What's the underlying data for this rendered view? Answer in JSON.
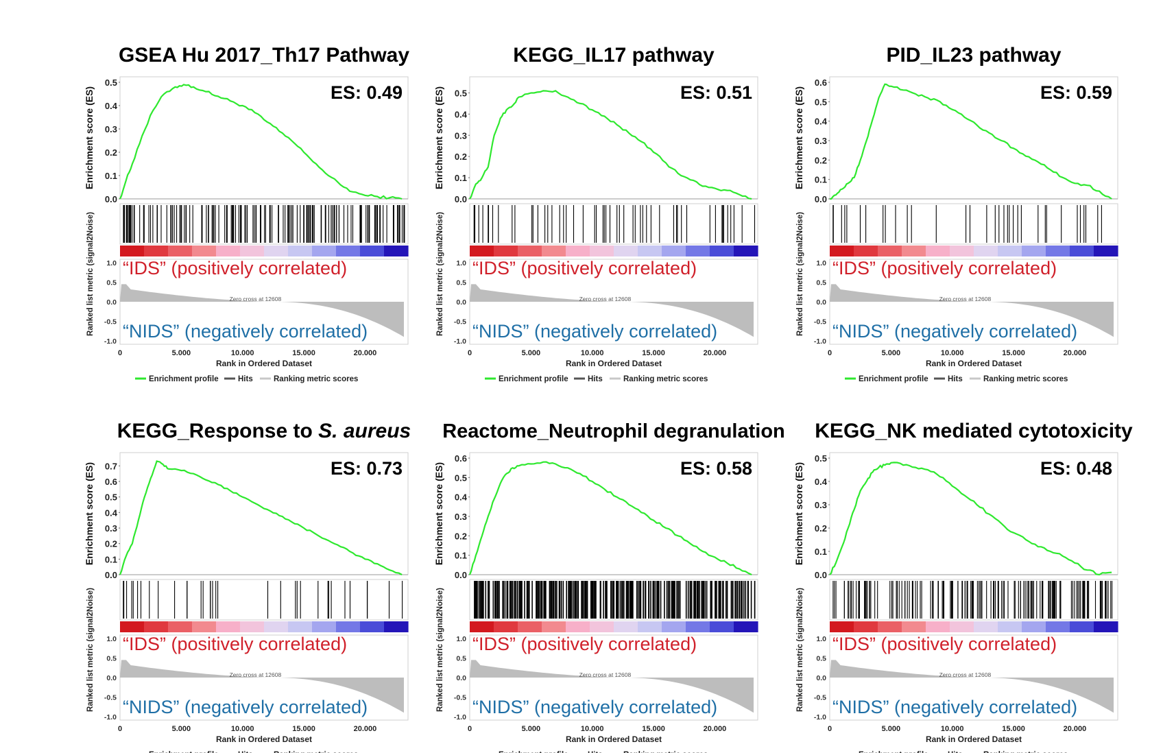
{
  "figure": {
    "es_prefix": "ES: ",
    "positive_label": "“IDS” (positively correlated)",
    "negative_label": "“NIDS” (negatively correlated)",
    "y_label_es": "Enrichment score (ES)",
    "y_label_rank": "Ranked list metric (signal2Noise)",
    "x_label": "Rank in Ordered Dataset",
    "zero_cross": "Zero cross at 12608",
    "legend": [
      "Enrichment profile",
      "Hits",
      "Ranking metric scores"
    ],
    "rank_ticks": [
      "1.0",
      "0.5",
      "0.0",
      "-0.5",
      "-1.0"
    ],
    "x_ticks": [
      "0",
      "5.000",
      "10.000",
      "15.000",
      "20.000"
    ],
    "x_tick_values": [
      0,
      5000,
      10000,
      15000,
      20000
    ],
    "n_genes": 23500,
    "colors": {
      "profile": "#2ee82e",
      "hits": "#000000",
      "metric": "#bdbdbd",
      "positive": "#d0202a",
      "negative": "#1f6fa6"
    }
  },
  "chart_data": [
    {
      "type": "line",
      "title": "GSEA Hu 2017_Th17 Pathway",
      "es": "0.49",
      "xlabel": "Rank in Ordered Dataset",
      "ylabel": "Enrichment score (ES)",
      "ylim": [
        0,
        0.5
      ],
      "yticks": [
        "0.0",
        "0.1",
        "0.2",
        "0.3",
        "0.4",
        "0.5"
      ],
      "x": [
        0,
        500,
        1000,
        1800,
        2700,
        3600,
        4500,
        5200,
        6000,
        7000,
        8000,
        9000,
        10000,
        11000,
        12000,
        13000,
        14000,
        15000,
        16000,
        17000,
        18000,
        19000,
        20000,
        21000,
        22000,
        23000
      ],
      "y": [
        0,
        0.08,
        0.15,
        0.27,
        0.38,
        0.45,
        0.48,
        0.49,
        0.48,
        0.46,
        0.44,
        0.42,
        0.4,
        0.37,
        0.33,
        0.29,
        0.25,
        0.2,
        0.15,
        0.1,
        0.06,
        0.03,
        0.015,
        0.01,
        0.005,
        0.0
      ],
      "hits_density": "dense"
    },
    {
      "type": "line",
      "title": "KEGG_IL17 pathway",
      "es": "0.51",
      "xlabel": "Rank in Ordered Dataset",
      "ylabel": "Enrichment score (ES)",
      "ylim": [
        0,
        0.55
      ],
      "yticks": [
        "0.0",
        "0.1",
        "0.2",
        "0.3",
        "0.4",
        "0.5"
      ],
      "x": [
        0,
        500,
        1000,
        1500,
        2000,
        2500,
        3000,
        3500,
        4000,
        5000,
        6000,
        7000,
        8000,
        9000,
        10000,
        11000,
        12000,
        13000,
        14000,
        15000,
        16000,
        17000,
        18000,
        19000,
        20000,
        21000,
        22000,
        23000
      ],
      "y": [
        0,
        0.07,
        0.1,
        0.15,
        0.3,
        0.38,
        0.42,
        0.44,
        0.48,
        0.5,
        0.51,
        0.51,
        0.48,
        0.45,
        0.42,
        0.39,
        0.35,
        0.31,
        0.27,
        0.22,
        0.17,
        0.12,
        0.09,
        0.06,
        0.05,
        0.04,
        0.02,
        0.0
      ],
      "hits_density": "medium"
    },
    {
      "type": "line",
      "title": "PID_IL23 pathway",
      "es": "0.59",
      "xlabel": "Rank in Ordered Dataset",
      "ylabel": "Enrichment score (ES)",
      "ylim": [
        0,
        0.6
      ],
      "yticks": [
        "0.0",
        "0.1",
        "0.2",
        "0.3",
        "0.4",
        "0.5",
        "0.6"
      ],
      "x": [
        0,
        500,
        1000,
        1500,
        2000,
        2500,
        3000,
        3500,
        4000,
        4500,
        5000,
        6000,
        7000,
        8000,
        9000,
        10000,
        11000,
        12000,
        13000,
        14000,
        15000,
        16000,
        17000,
        18000,
        19000,
        20000,
        21000,
        22000,
        23000
      ],
      "y": [
        0,
        0.02,
        0.05,
        0.08,
        0.11,
        0.2,
        0.3,
        0.41,
        0.52,
        0.59,
        0.58,
        0.56,
        0.54,
        0.52,
        0.5,
        0.46,
        0.42,
        0.38,
        0.34,
        0.3,
        0.26,
        0.22,
        0.19,
        0.15,
        0.11,
        0.08,
        0.07,
        0.04,
        0.0
      ],
      "hits_density": "sparse"
    },
    {
      "type": "line",
      "title": "KEGG_Response to S. aureus",
      "es": "0.73",
      "xlabel": "Rank in Ordered Dataset",
      "ylabel": "Enrichment score (ES)",
      "ylim": [
        0,
        0.75
      ],
      "yticks": [
        "0.0",
        "0.1",
        "0.2",
        "0.3",
        "0.4",
        "0.5",
        "0.6",
        "0.7"
      ],
      "x": [
        0,
        500,
        1000,
        1500,
        2000,
        2500,
        3000,
        3500,
        4000,
        5000,
        6000,
        7000,
        8000,
        9000,
        10000,
        11000,
        12000,
        13000,
        14000,
        15000,
        16000,
        17000,
        18000,
        19000,
        20000,
        21000,
        22000,
        23000
      ],
      "y": [
        0,
        0.12,
        0.2,
        0.35,
        0.5,
        0.62,
        0.73,
        0.71,
        0.68,
        0.67,
        0.65,
        0.61,
        0.58,
        0.54,
        0.5,
        0.46,
        0.42,
        0.38,
        0.34,
        0.3,
        0.26,
        0.22,
        0.18,
        0.14,
        0.1,
        0.07,
        0.03,
        0.0
      ],
      "hits_density": "sparse"
    },
    {
      "type": "line",
      "title": "Reactome_Neutrophil degranulation",
      "es": "0.58",
      "xlabel": "Rank in Ordered Dataset",
      "ylabel": "Enrichment score (ES)",
      "ylim": [
        0,
        0.6
      ],
      "yticks": [
        "0.0",
        "0.1",
        "0.2",
        "0.3",
        "0.4",
        "0.5",
        "0.6"
      ],
      "x": [
        0,
        500,
        1000,
        1500,
        2000,
        2500,
        3000,
        3500,
        4000,
        5000,
        6000,
        7000,
        8000,
        9000,
        10000,
        11000,
        12000,
        13000,
        14000,
        15000,
        16000,
        17000,
        18000,
        19000,
        20000,
        21000,
        22000,
        23000
      ],
      "y": [
        0,
        0.1,
        0.2,
        0.3,
        0.39,
        0.47,
        0.52,
        0.55,
        0.56,
        0.57,
        0.58,
        0.57,
        0.55,
        0.52,
        0.48,
        0.44,
        0.4,
        0.36,
        0.32,
        0.28,
        0.24,
        0.2,
        0.16,
        0.12,
        0.09,
        0.06,
        0.03,
        0.0
      ],
      "hits_density": "verydense"
    },
    {
      "type": "line",
      "title": "KEGG_NK mediated cytotoxicity",
      "es": "0.48",
      "xlabel": "Rank in Ordered Dataset",
      "ylabel": "Enrichment score (ES)",
      "ylim": [
        0,
        0.5
      ],
      "yticks": [
        "0.0",
        "0.1",
        "0.2",
        "0.3",
        "0.4",
        "0.5"
      ],
      "x": [
        0,
        500,
        1000,
        1500,
        2000,
        2500,
        3000,
        3500,
        4000,
        4500,
        5000,
        6000,
        7000,
        8000,
        9000,
        10000,
        11000,
        12000,
        13000,
        14000,
        15000,
        16000,
        17000,
        18000,
        19000,
        20000,
        21000,
        22000,
        23000
      ],
      "y": [
        0,
        0.05,
        0.12,
        0.2,
        0.28,
        0.36,
        0.4,
        0.44,
        0.46,
        0.47,
        0.48,
        0.47,
        0.46,
        0.45,
        0.42,
        0.38,
        0.34,
        0.3,
        0.26,
        0.22,
        0.18,
        0.15,
        0.12,
        0.1,
        0.08,
        0.05,
        0.02,
        0.0,
        0.01
      ],
      "hits_density": "dense"
    }
  ]
}
